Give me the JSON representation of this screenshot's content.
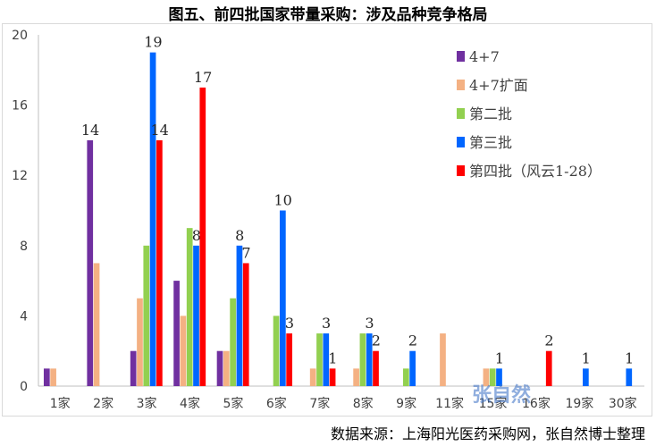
{
  "title": "图五、前四批国家带量采购：涉及品种竞争格局",
  "source": "数据来源：上海阳光医药采购网，张自然博士整理",
  "watermark": "张自然",
  "chart_data": {
    "type": "bar",
    "categories": [
      "1家",
      "2家",
      "3家",
      "4家",
      "5家",
      "6家",
      "7家",
      "8家",
      "9家",
      "11家",
      "15家",
      "16家",
      "19家",
      "30家"
    ],
    "ylim": [
      0,
      20
    ],
    "yticks": [
      0,
      4,
      8,
      12,
      16,
      20
    ],
    "grid": false,
    "legend_position": "top-right",
    "series": [
      {
        "name": "4+7",
        "color": "#7030A0",
        "values": [
          1,
          14,
          2,
          6,
          2,
          0,
          0,
          0,
          0,
          0,
          0,
          0,
          0,
          0
        ],
        "labels": [
          "",
          "14",
          "",
          "",
          "",
          "",
          "",
          "",
          "",
          "",
          "",
          "",
          "",
          ""
        ]
      },
      {
        "name": "4+7扩面",
        "color": "#F4B183",
        "values": [
          1,
          7,
          5,
          4,
          2,
          0,
          1,
          1,
          0,
          3,
          1,
          0,
          0,
          0
        ],
        "labels": [
          "",
          "",
          "",
          "",
          "",
          "",
          "",
          "",
          "",
          "",
          "",
          "",
          "",
          ""
        ]
      },
      {
        "name": "第二批",
        "color": "#92D050",
        "values": [
          0,
          0,
          8,
          9,
          5,
          4,
          3,
          3,
          1,
          0,
          1,
          0,
          0,
          0
        ],
        "labels": [
          "",
          "",
          "",
          "",
          "",
          "",
          "",
          "",
          "",
          "",
          "",
          "",
          "",
          ""
        ]
      },
      {
        "name": "第三批",
        "color": "#0066FF",
        "values": [
          0,
          0,
          19,
          8,
          8,
          10,
          3,
          3,
          2,
          0,
          1,
          0,
          1,
          1
        ],
        "labels": [
          "",
          "",
          "19",
          "8",
          "8",
          "10",
          "3",
          "3",
          "2",
          "",
          "1",
          "",
          "1",
          "1"
        ]
      },
      {
        "name": "第四批（风云1-28）",
        "color": "#FF0000",
        "values": [
          0,
          0,
          14,
          17,
          7,
          3,
          1,
          2,
          0,
          0,
          0,
          2,
          0,
          0
        ],
        "labels": [
          "",
          "",
          "14",
          "17",
          "7",
          "3",
          "1",
          "2",
          "",
          "",
          "",
          "2",
          "",
          ""
        ]
      }
    ]
  }
}
